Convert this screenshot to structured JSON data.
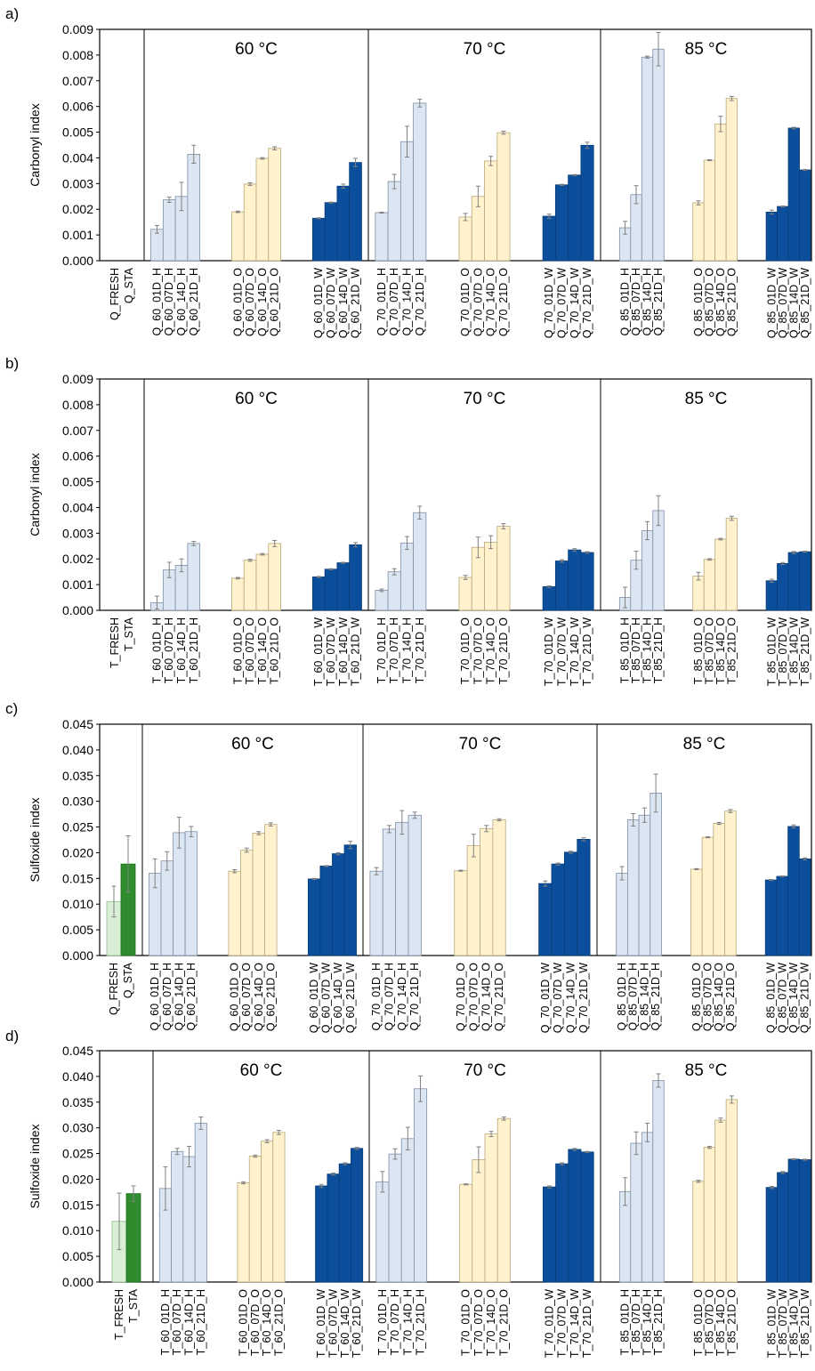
{
  "colors": {
    "H": "#dce6f2",
    "O": "#fff2cc",
    "W": "#0b4f9c",
    "fresh": "#d9efd5",
    "sta": "#2e8b2e",
    "edge": "#7f8fa6"
  },
  "chart_data": [
    {
      "panel": "a)",
      "type": "bar",
      "ylabel": "Carbonyl index",
      "ylim": [
        0,
        0.009
      ],
      "yticks": [
        0,
        0.001,
        0.002,
        0.003,
        0.004,
        0.005,
        0.006,
        0.007,
        0.008,
        0.009
      ],
      "decimals": 3,
      "base_categories": [
        "Q_FRESH",
        "Q_STA"
      ],
      "base_values": [
        0,
        0
      ],
      "base_errors": [
        0,
        0
      ],
      "temps": [
        "60 °C",
        "70 °C",
        "85 °C"
      ],
      "groups": [
        [
          {
            "env": "H",
            "categories": [
              "Q_60_01D_H",
              "Q_60_07D_H",
              "Q_60_14D_H",
              "Q_60_21D_H"
            ],
            "values": [
              0.00122,
              0.00237,
              0.0025,
              0.00414
            ],
            "errors": [
              0.00015,
              0.0001,
              0.00055,
              0.00035
            ]
          },
          {
            "env": "O",
            "categories": [
              "Q_60_01D_O",
              "Q_60_07D_O",
              "Q_60_14D_O",
              "Q_60_21D_O"
            ],
            "values": [
              0.0019,
              0.00298,
              0.00398,
              0.00437
            ],
            "errors": [
              3e-05,
              5e-05,
              3e-05,
              6e-05
            ]
          },
          {
            "env": "W",
            "categories": [
              "Q_60_01D_W",
              "Q_60_07D_W",
              "Q_60_14D_W",
              "Q_60_21D_W"
            ],
            "values": [
              0.00165,
              0.00226,
              0.0029,
              0.00382
            ],
            "errors": [
              2e-05,
              2e-05,
              8e-05,
              0.00016
            ]
          }
        ],
        [
          {
            "env": "H",
            "categories": [
              "Q_70_01D_H",
              "Q_70_07D_H",
              "Q_70_14D_H",
              "Q_70_21D_H"
            ],
            "values": [
              0.00187,
              0.00308,
              0.00463,
              0.00613
            ],
            "errors": [
              2e-05,
              0.00028,
              0.0006,
              0.00015
            ]
          },
          {
            "env": "O",
            "categories": [
              "Q_70_01D_O",
              "Q_70_07D_O",
              "Q_70_14D_O",
              "Q_70_21D_O"
            ],
            "values": [
              0.0017,
              0.0025,
              0.00388,
              0.00498
            ],
            "errors": [
              0.00014,
              0.0004,
              0.00018,
              6e-05
            ]
          },
          {
            "env": "W",
            "categories": [
              "Q_70_01D_W",
              "Q_70_07D_W",
              "Q_70_14D_W",
              "Q_70_21D_W"
            ],
            "values": [
              0.00173,
              0.00295,
              0.00333,
              0.00449
            ],
            "errors": [
              8e-05,
              2e-05,
              2e-05,
              0.00012
            ]
          }
        ],
        [
          {
            "env": "H",
            "categories": [
              "Q_85_01D_H",
              "Q_85_07D_H",
              "Q_85_14D_H",
              "Q_85_21D_H"
            ],
            "values": [
              0.00128,
              0.00257,
              0.00792,
              0.00823
            ],
            "errors": [
              0.00025,
              0.00035,
              4e-05,
              0.00065
            ]
          },
          {
            "env": "O",
            "categories": [
              "Q_85_01D_O",
              "Q_85_07D_O",
              "Q_85_14D_O",
              "Q_85_21D_O"
            ],
            "values": [
              0.00225,
              0.00391,
              0.00532,
              0.00631
            ],
            "errors": [
              8e-05,
              2e-05,
              0.0003,
              8e-05
            ]
          },
          {
            "env": "W",
            "categories": [
              "Q_85_01D_W",
              "Q_85_07D_W",
              "Q_85_14D_W",
              "Q_85_21D_W"
            ],
            "values": [
              0.00189,
              0.00211,
              0.00516,
              0.00353
            ],
            "errors": [
              8e-05,
              2e-05,
              3e-05,
              2e-05
            ]
          }
        ]
      ]
    },
    {
      "panel": "b)",
      "type": "bar",
      "ylabel": "Carbonyl index",
      "ylim": [
        0,
        0.009
      ],
      "yticks": [
        0,
        0.001,
        0.002,
        0.003,
        0.004,
        0.005,
        0.006,
        0.007,
        0.008,
        0.009
      ],
      "decimals": 3,
      "base_categories": [
        "T_FRESH",
        "T_STA"
      ],
      "base_values": [
        0,
        0
      ],
      "base_errors": [
        0,
        0
      ],
      "temps": [
        "60 °C",
        "70 °C",
        "85 °C"
      ],
      "groups": [
        [
          {
            "env": "H",
            "categories": [
              "T_60_01D_H",
              "T_60_07D_H",
              "T_60_14D_H",
              "T_60_21D_H"
            ],
            "values": [
              0.0003,
              0.00157,
              0.00175,
              0.0026
            ],
            "errors": [
              0.00025,
              0.0003,
              0.00025,
              8e-05
            ]
          },
          {
            "env": "O",
            "categories": [
              "T_60_01D_O",
              "T_60_07D_O",
              "T_60_14D_O",
              "T_60_21D_O"
            ],
            "values": [
              0.00125,
              0.00195,
              0.00218,
              0.0026
            ],
            "errors": [
              3e-05,
              4e-05,
              3e-05,
              0.00012
            ]
          },
          {
            "env": "W",
            "categories": [
              "T_60_01D_W",
              "T_60_07D_W",
              "T_60_14D_W",
              "T_60_21D_W"
            ],
            "values": [
              0.0013,
              0.0016,
              0.00185,
              0.00255
            ],
            "errors": [
              2e-05,
              2e-05,
              2e-05,
              8e-05
            ]
          }
        ],
        [
          {
            "env": "H",
            "categories": [
              "T_70_01D_H",
              "T_70_07D_H",
              "T_70_14D_H",
              "T_70_21D_H"
            ],
            "values": [
              0.00078,
              0.0015,
              0.00262,
              0.0038
            ],
            "errors": [
              5e-05,
              0.00012,
              0.00025,
              0.00025
            ]
          },
          {
            "env": "O",
            "categories": [
              "T_70_01D_O",
              "T_70_07D_O",
              "T_70_14D_O",
              "T_70_21D_O"
            ],
            "values": [
              0.00128,
              0.00245,
              0.00265,
              0.00327
            ],
            "errors": [
              8e-05,
              0.0004,
              0.00025,
              0.0001
            ]
          },
          {
            "env": "W",
            "categories": [
              "T_70_01D_W",
              "T_70_07D_W",
              "T_70_14D_W",
              "T_70_21D_W"
            ],
            "values": [
              0.00092,
              0.00192,
              0.00235,
              0.00225
            ],
            "errors": [
              3e-05,
              5e-05,
              5e-05,
              3e-05
            ]
          }
        ],
        [
          {
            "env": "H",
            "categories": [
              "T_85_01D_H",
              "T_85_07D_H",
              "T_85_14D_H",
              "T_85_21D_H"
            ],
            "values": [
              0.0005,
              0.00195,
              0.0031,
              0.00388
            ],
            "errors": [
              0.0004,
              0.00035,
              0.00035,
              0.00058
            ]
          },
          {
            "env": "O",
            "categories": [
              "T_85_01D_O",
              "T_85_07D_O",
              "T_85_14D_O",
              "T_85_21D_O"
            ],
            "values": [
              0.00133,
              0.00198,
              0.00277,
              0.00358
            ],
            "errors": [
              0.00015,
              3e-05,
              3e-05,
              8e-05
            ]
          },
          {
            "env": "W",
            "categories": [
              "T_85_01D_W",
              "T_85_07D_W",
              "T_85_14D_W",
              "T_85_21D_W"
            ],
            "values": [
              0.00115,
              0.00182,
              0.00225,
              0.00228
            ],
            "errors": [
              6e-05,
              4e-05,
              4e-05,
              2e-05
            ]
          }
        ]
      ]
    },
    {
      "panel": "c)",
      "type": "bar",
      "ylabel": "Sulfoxide index",
      "ylim": [
        0,
        0.045
      ],
      "yticks": [
        0,
        0.005,
        0.01,
        0.015,
        0.02,
        0.025,
        0.03,
        0.035,
        0.04,
        0.045
      ],
      "decimals": 3,
      "base_categories": [
        "Q_FRESH",
        "Q_STA"
      ],
      "base_values": [
        0.0105,
        0.0178
      ],
      "base_errors": [
        0.003,
        0.0055
      ],
      "temps": [
        "60 °C",
        "70 °C",
        "85 °C"
      ],
      "groups": [
        [
          {
            "env": "H",
            "categories": [
              "Q_60_01D_H",
              "Q_60_07D_H",
              "Q_60_14D_H",
              "Q_60_21D_H"
            ],
            "values": [
              0.016,
              0.0184,
              0.0239,
              0.0241
            ],
            "errors": [
              0.0028,
              0.0018,
              0.003,
              0.001
            ]
          },
          {
            "env": "O",
            "categories": [
              "Q_60_01D_O",
              "Q_60_07D_O",
              "Q_60_14D_O",
              "Q_60_21D_O"
            ],
            "values": [
              0.0164,
              0.0205,
              0.0238,
              0.0255
            ],
            "errors": [
              0.0003,
              0.0004,
              0.0003,
              0.0003
            ]
          },
          {
            "env": "W",
            "categories": [
              "Q_60_01D_W",
              "Q_60_07D_W",
              "Q_60_14D_W",
              "Q_60_21D_W"
            ],
            "values": [
              0.0149,
              0.0174,
              0.0198,
              0.0215
            ],
            "errors": [
              0.0001,
              0.0001,
              0.0002,
              0.0007
            ]
          }
        ],
        [
          {
            "env": "H",
            "categories": [
              "Q_70_01D_H",
              "Q_70_07D_H",
              "Q_70_14D_H",
              "Q_70_21D_H"
            ],
            "values": [
              0.0164,
              0.0246,
              0.0259,
              0.0273
            ],
            "errors": [
              0.0007,
              0.0007,
              0.0023,
              0.0006
            ]
          },
          {
            "env": "O",
            "categories": [
              "Q_70_01D_O",
              "Q_70_07D_O",
              "Q_70_14D_O",
              "Q_70_21D_O"
            ],
            "values": [
              0.0165,
              0.0214,
              0.0247,
              0.0264
            ],
            "errors": [
              0.0001,
              0.0022,
              0.0006,
              0.0002
            ]
          },
          {
            "env": "W",
            "categories": [
              "Q_70_01D_W",
              "Q_70_07D_W",
              "Q_70_14D_W",
              "Q_70_21D_W"
            ],
            "values": [
              0.014,
              0.0178,
              0.0201,
              0.0226
            ],
            "errors": [
              0.0005,
              0.0002,
              0.0002,
              0.0003
            ]
          }
        ],
        [
          {
            "env": "H",
            "categories": [
              "Q_85_01D_H",
              "Q_85_07D_H",
              "Q_85_14D_H",
              "Q_85_21D_H"
            ],
            "values": [
              0.016,
              0.0264,
              0.0273,
              0.0316
            ],
            "errors": [
              0.0013,
              0.0012,
              0.0014,
              0.0037
            ]
          },
          {
            "env": "O",
            "categories": [
              "Q_85_01D_O",
              "Q_85_07D_O",
              "Q_85_14D_O",
              "Q_85_21D_O"
            ],
            "values": [
              0.0168,
              0.023,
              0.0257,
              0.0281
            ],
            "errors": [
              0.0001,
              0.0001,
              0.0002,
              0.0003
            ]
          },
          {
            "env": "W",
            "categories": [
              "Q_85_01D_W",
              "Q_85_07D_W",
              "Q_85_14D_W",
              "Q_85_21D_W"
            ],
            "values": [
              0.0147,
              0.0154,
              0.0251,
              0.0188
            ],
            "errors": [
              0.0001,
              0.0001,
              0.0003,
              0.0002
            ]
          }
        ]
      ]
    },
    {
      "panel": "d)",
      "type": "bar",
      "ylabel": "Sulfoxide index",
      "ylim": [
        0,
        0.045
      ],
      "yticks": [
        0,
        0.005,
        0.01,
        0.015,
        0.02,
        0.025,
        0.03,
        0.035,
        0.04,
        0.045
      ],
      "decimals": 3,
      "base_categories": [
        "T_FRESH",
        "T_STA"
      ],
      "base_values": [
        0.0118,
        0.0172
      ],
      "base_errors": [
        0.0055,
        0.0015
      ],
      "temps": [
        "60 °C",
        "70 °C",
        "85 °C"
      ],
      "groups": [
        [
          {
            "env": "H",
            "categories": [
              "T_60_01D_H",
              "T_60_07D_H",
              "T_60_14D_H",
              "T_60_21D_H"
            ],
            "values": [
              0.0182,
              0.0254,
              0.0244,
              0.0309
            ],
            "errors": [
              0.0042,
              0.0006,
              0.002,
              0.0012
            ]
          },
          {
            "env": "O",
            "categories": [
              "T_60_01D_O",
              "T_60_07D_O",
              "T_60_14D_O",
              "T_60_21D_O"
            ],
            "values": [
              0.0193,
              0.0245,
              0.0274,
              0.0291
            ],
            "errors": [
              0.0002,
              0.0002,
              0.0003,
              0.0004
            ]
          },
          {
            "env": "W",
            "categories": [
              "T_60_01D_W",
              "T_60_07D_W",
              "T_60_14D_W",
              "T_60_21D_W"
            ],
            "values": [
              0.0187,
              0.021,
              0.023,
              0.026
            ],
            "errors": [
              0.0003,
              0.0002,
              0.0002,
              0.0002
            ]
          }
        ],
        [
          {
            "env": "H",
            "categories": [
              "T_70_01D_H",
              "T_70_07D_H",
              "T_70_14D_H",
              "T_70_21D_H"
            ],
            "values": [
              0.0195,
              0.0249,
              0.0279,
              0.0376
            ],
            "errors": [
              0.002,
              0.001,
              0.0022,
              0.0025
            ]
          },
          {
            "env": "O",
            "categories": [
              "T_70_01D_O",
              "T_70_07D_O",
              "T_70_14D_O",
              "T_70_21D_O"
            ],
            "values": [
              0.019,
              0.0238,
              0.0288,
              0.0318
            ],
            "errors": [
              0.0001,
              0.0025,
              0.0005,
              0.0003
            ]
          },
          {
            "env": "W",
            "categories": [
              "T_70_01D_W",
              "T_70_07D_W",
              "T_70_14D_W",
              "T_70_21D_W"
            ],
            "values": [
              0.0185,
              0.023,
              0.0258,
              0.0253
            ],
            "errors": [
              0.0002,
              0.0002,
              0.0002,
              0.0001
            ]
          }
        ],
        [
          {
            "env": "H",
            "categories": [
              "T_85_01D_H",
              "T_85_07D_H",
              "T_85_14D_H",
              "T_85_21D_H"
            ],
            "values": [
              0.0176,
              0.027,
              0.0291,
              0.0392
            ],
            "errors": [
              0.0027,
              0.0022,
              0.0018,
              0.0013
            ]
          },
          {
            "env": "O",
            "categories": [
              "T_85_01D_O",
              "T_85_07D_O",
              "T_85_14D_O",
              "T_85_21D_O"
            ],
            "values": [
              0.0196,
              0.0262,
              0.0315,
              0.0355
            ],
            "errors": [
              0.0002,
              0.0002,
              0.0004,
              0.0007
            ]
          },
          {
            "env": "W",
            "categories": [
              "T_85_01D_W",
              "T_85_07D_W",
              "T_85_14D_W",
              "T_85_21D_W"
            ],
            "values": [
              0.0184,
              0.0213,
              0.0239,
              0.0238
            ],
            "errors": [
              0.0002,
              0.0002,
              0.0001,
              0.0001
            ]
          }
        ]
      ]
    }
  ]
}
